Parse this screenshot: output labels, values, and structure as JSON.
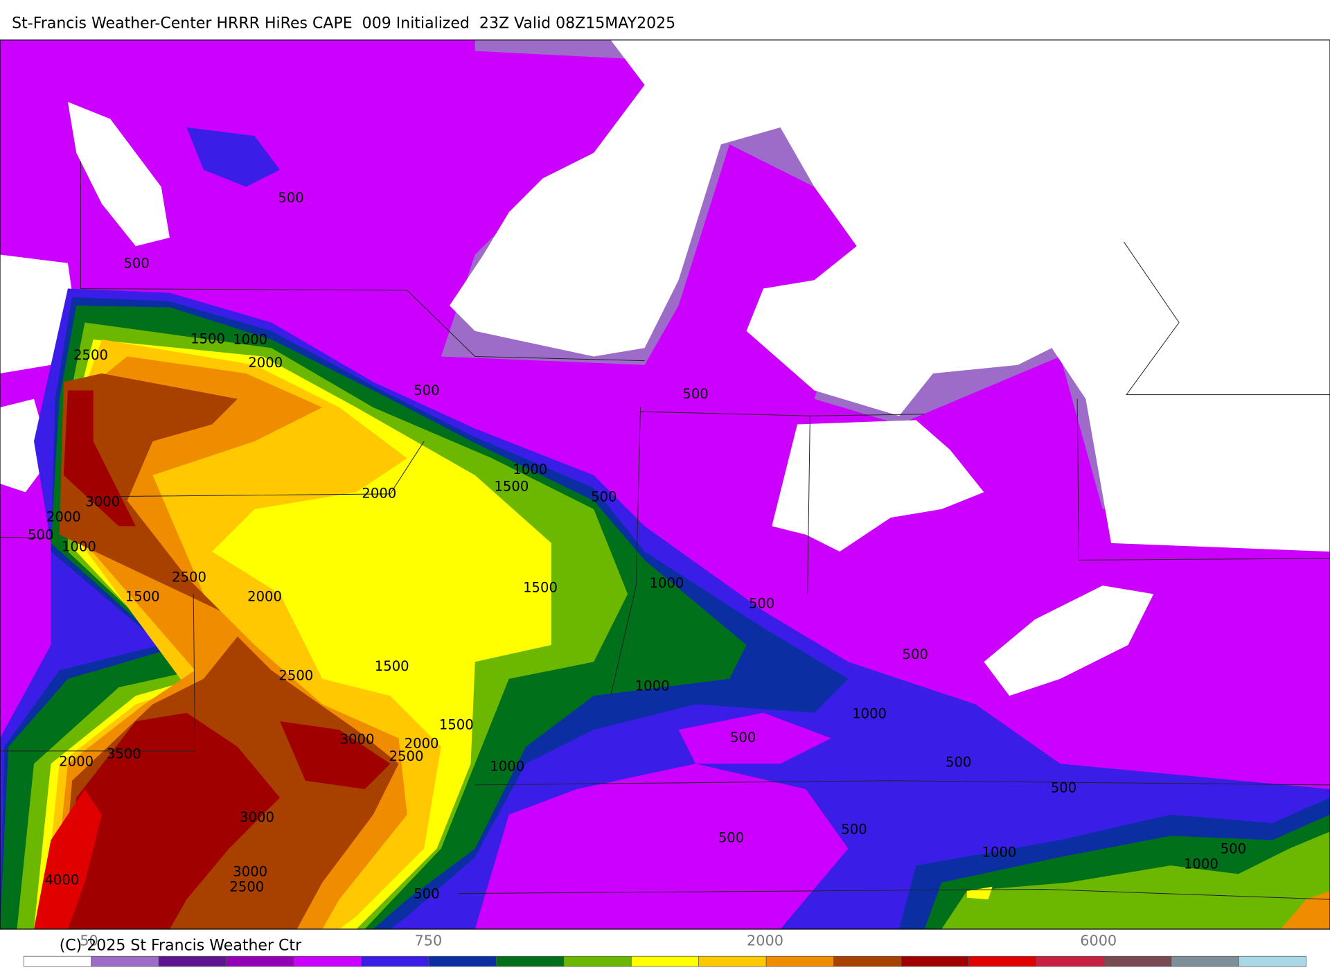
{
  "header": {
    "title": "St-Francis Weather-Center HRRR HiRes CAPE  009 Initialized  23Z Valid 08Z15MAY2025"
  },
  "map": {
    "contour_labels": [
      500,
      500,
      1500,
      1000,
      2500,
      2000,
      500,
      500,
      1000,
      1500,
      2000,
      500,
      3000,
      2000,
      500,
      1000,
      2500,
      1000,
      1500,
      1500,
      2000,
      500,
      500,
      1500,
      2500,
      1000,
      1000,
      1500,
      3000,
      500,
      2000,
      2500,
      3500,
      2000,
      1000,
      500,
      500,
      3000,
      500,
      500,
      1000,
      500,
      1000,
      3000,
      4000,
      2500,
      500
    ]
  },
  "legend": {
    "colors": [
      "#ffffff",
      "#9d6cc8",
      "#5e1592",
      "#9400b8",
      "#cc00ff",
      "#3a1ee8",
      "#0b2fa3",
      "#00701a",
      "#6cb800",
      "#ffff00",
      "#ffc800",
      "#f08c00",
      "#a84000",
      "#a00000",
      "#e00000",
      "#c82040",
      "#7a4a52",
      "#7d8f99",
      "#a9d9e6"
    ],
    "labels": [
      "50",
      "750",
      "2000",
      "6000"
    ]
  },
  "footer": {
    "copyright": "(C) 2025 St Francis Weather Ctr"
  }
}
